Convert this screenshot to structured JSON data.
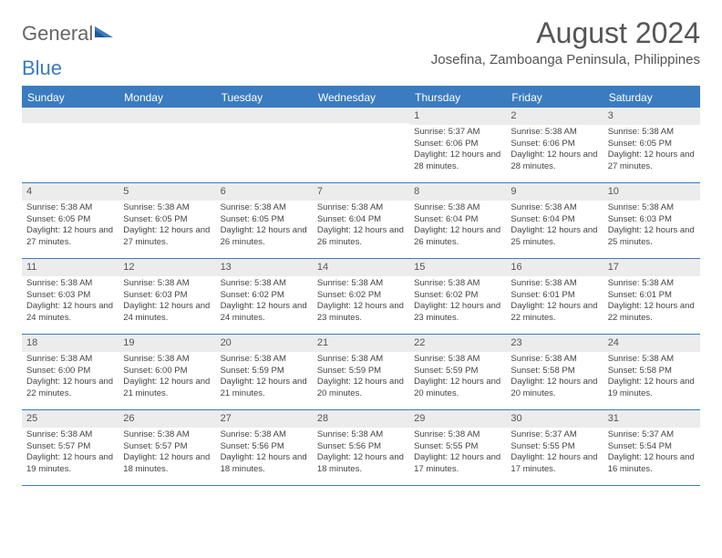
{
  "logo": {
    "part1": "General",
    "part2": "Blue"
  },
  "title": "August 2024",
  "location": "Josefina, Zamboanga Peninsula, Philippines",
  "colors": {
    "header_bg": "#3b7bbf",
    "header_text": "#ffffff",
    "daynum_bg": "#ececec",
    "text": "#444444",
    "logo_gray": "#666666",
    "logo_blue": "#3b7bbf"
  },
  "dayNames": [
    "Sunday",
    "Monday",
    "Tuesday",
    "Wednesday",
    "Thursday",
    "Friday",
    "Saturday"
  ],
  "weeks": [
    [
      {
        "n": "",
        "sr": "",
        "ss": "",
        "dl": ""
      },
      {
        "n": "",
        "sr": "",
        "ss": "",
        "dl": ""
      },
      {
        "n": "",
        "sr": "",
        "ss": "",
        "dl": ""
      },
      {
        "n": "",
        "sr": "",
        "ss": "",
        "dl": ""
      },
      {
        "n": "1",
        "sr": "Sunrise: 5:37 AM",
        "ss": "Sunset: 6:06 PM",
        "dl": "Daylight: 12 hours and 28 minutes."
      },
      {
        "n": "2",
        "sr": "Sunrise: 5:38 AM",
        "ss": "Sunset: 6:06 PM",
        "dl": "Daylight: 12 hours and 28 minutes."
      },
      {
        "n": "3",
        "sr": "Sunrise: 5:38 AM",
        "ss": "Sunset: 6:05 PM",
        "dl": "Daylight: 12 hours and 27 minutes."
      }
    ],
    [
      {
        "n": "4",
        "sr": "Sunrise: 5:38 AM",
        "ss": "Sunset: 6:05 PM",
        "dl": "Daylight: 12 hours and 27 minutes."
      },
      {
        "n": "5",
        "sr": "Sunrise: 5:38 AM",
        "ss": "Sunset: 6:05 PM",
        "dl": "Daylight: 12 hours and 27 minutes."
      },
      {
        "n": "6",
        "sr": "Sunrise: 5:38 AM",
        "ss": "Sunset: 6:05 PM",
        "dl": "Daylight: 12 hours and 26 minutes."
      },
      {
        "n": "7",
        "sr": "Sunrise: 5:38 AM",
        "ss": "Sunset: 6:04 PM",
        "dl": "Daylight: 12 hours and 26 minutes."
      },
      {
        "n": "8",
        "sr": "Sunrise: 5:38 AM",
        "ss": "Sunset: 6:04 PM",
        "dl": "Daylight: 12 hours and 26 minutes."
      },
      {
        "n": "9",
        "sr": "Sunrise: 5:38 AM",
        "ss": "Sunset: 6:04 PM",
        "dl": "Daylight: 12 hours and 25 minutes."
      },
      {
        "n": "10",
        "sr": "Sunrise: 5:38 AM",
        "ss": "Sunset: 6:03 PM",
        "dl": "Daylight: 12 hours and 25 minutes."
      }
    ],
    [
      {
        "n": "11",
        "sr": "Sunrise: 5:38 AM",
        "ss": "Sunset: 6:03 PM",
        "dl": "Daylight: 12 hours and 24 minutes."
      },
      {
        "n": "12",
        "sr": "Sunrise: 5:38 AM",
        "ss": "Sunset: 6:03 PM",
        "dl": "Daylight: 12 hours and 24 minutes."
      },
      {
        "n": "13",
        "sr": "Sunrise: 5:38 AM",
        "ss": "Sunset: 6:02 PM",
        "dl": "Daylight: 12 hours and 24 minutes."
      },
      {
        "n": "14",
        "sr": "Sunrise: 5:38 AM",
        "ss": "Sunset: 6:02 PM",
        "dl": "Daylight: 12 hours and 23 minutes."
      },
      {
        "n": "15",
        "sr": "Sunrise: 5:38 AM",
        "ss": "Sunset: 6:02 PM",
        "dl": "Daylight: 12 hours and 23 minutes."
      },
      {
        "n": "16",
        "sr": "Sunrise: 5:38 AM",
        "ss": "Sunset: 6:01 PM",
        "dl": "Daylight: 12 hours and 22 minutes."
      },
      {
        "n": "17",
        "sr": "Sunrise: 5:38 AM",
        "ss": "Sunset: 6:01 PM",
        "dl": "Daylight: 12 hours and 22 minutes."
      }
    ],
    [
      {
        "n": "18",
        "sr": "Sunrise: 5:38 AM",
        "ss": "Sunset: 6:00 PM",
        "dl": "Daylight: 12 hours and 22 minutes."
      },
      {
        "n": "19",
        "sr": "Sunrise: 5:38 AM",
        "ss": "Sunset: 6:00 PM",
        "dl": "Daylight: 12 hours and 21 minutes."
      },
      {
        "n": "20",
        "sr": "Sunrise: 5:38 AM",
        "ss": "Sunset: 5:59 PM",
        "dl": "Daylight: 12 hours and 21 minutes."
      },
      {
        "n": "21",
        "sr": "Sunrise: 5:38 AM",
        "ss": "Sunset: 5:59 PM",
        "dl": "Daylight: 12 hours and 20 minutes."
      },
      {
        "n": "22",
        "sr": "Sunrise: 5:38 AM",
        "ss": "Sunset: 5:59 PM",
        "dl": "Daylight: 12 hours and 20 minutes."
      },
      {
        "n": "23",
        "sr": "Sunrise: 5:38 AM",
        "ss": "Sunset: 5:58 PM",
        "dl": "Daylight: 12 hours and 20 minutes."
      },
      {
        "n": "24",
        "sr": "Sunrise: 5:38 AM",
        "ss": "Sunset: 5:58 PM",
        "dl": "Daylight: 12 hours and 19 minutes."
      }
    ],
    [
      {
        "n": "25",
        "sr": "Sunrise: 5:38 AM",
        "ss": "Sunset: 5:57 PM",
        "dl": "Daylight: 12 hours and 19 minutes."
      },
      {
        "n": "26",
        "sr": "Sunrise: 5:38 AM",
        "ss": "Sunset: 5:57 PM",
        "dl": "Daylight: 12 hours and 18 minutes."
      },
      {
        "n": "27",
        "sr": "Sunrise: 5:38 AM",
        "ss": "Sunset: 5:56 PM",
        "dl": "Daylight: 12 hours and 18 minutes."
      },
      {
        "n": "28",
        "sr": "Sunrise: 5:38 AM",
        "ss": "Sunset: 5:56 PM",
        "dl": "Daylight: 12 hours and 18 minutes."
      },
      {
        "n": "29",
        "sr": "Sunrise: 5:38 AM",
        "ss": "Sunset: 5:55 PM",
        "dl": "Daylight: 12 hours and 17 minutes."
      },
      {
        "n": "30",
        "sr": "Sunrise: 5:37 AM",
        "ss": "Sunset: 5:55 PM",
        "dl": "Daylight: 12 hours and 17 minutes."
      },
      {
        "n": "31",
        "sr": "Sunrise: 5:37 AM",
        "ss": "Sunset: 5:54 PM",
        "dl": "Daylight: 12 hours and 16 minutes."
      }
    ]
  ]
}
